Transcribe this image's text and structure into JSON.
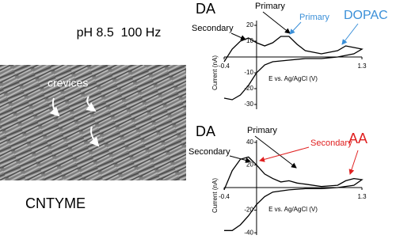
{
  "header": {
    "conditions": "pH 8.5  100 Hz"
  },
  "image": {
    "label": "crevices",
    "caption": "CNTYME"
  },
  "chart_data": [
    {
      "type": "line",
      "xlabel": "E vs. Ag/AgCl (V)",
      "ylabel": "Current (nA)",
      "x": [
        -0.4,
        -0.3,
        -0.2,
        -0.1,
        0,
        0.1,
        0.2,
        0.3,
        0.4,
        0.5,
        0.6,
        0.8,
        1.0,
        1.1,
        1.2,
        1.3,
        1.2,
        1.0,
        0.8,
        0.6,
        0.4,
        0.2,
        0.1,
        0,
        -0.1,
        -0.2,
        -0.3,
        -0.4
      ],
      "values": [
        -3,
        5,
        10,
        12,
        9,
        7,
        9,
        13,
        13,
        8,
        4,
        2,
        4,
        7,
        6,
        5,
        2,
        0,
        -1,
        -1,
        -2,
        -3,
        -5,
        -10,
        -18,
        -24,
        -27,
        -26
      ],
      "color": "#000000",
      "xlim": [
        -0.4,
        1.3
      ],
      "xticks": [
        -0.4,
        1.3
      ],
      "ylim": [
        -33,
        23
      ],
      "yticks": [
        20,
        10,
        -10,
        -20,
        -30
      ],
      "annotations": [
        "DA",
        "Primary",
        "Secondary",
        "Primary",
        "DOPAC"
      ]
    },
    {
      "type": "line",
      "xlabel": "E vs. Ag/AgCl (V)",
      "ylabel": "Current (nA)",
      "x": [
        -0.4,
        -0.3,
        -0.2,
        -0.1,
        0,
        0.1,
        0.2,
        0.3,
        0.4,
        0.5,
        0.6,
        0.8,
        1.0,
        1.1,
        1.2,
        1.3,
        1.2,
        1.0,
        0.8,
        0.6,
        0.4,
        0.2,
        0.1,
        0,
        -0.1,
        -0.2,
        -0.3,
        -0.4
      ],
      "values": [
        -2,
        15,
        25,
        27,
        20,
        12,
        8,
        5,
        6,
        4,
        3,
        1,
        2,
        6,
        8,
        7,
        2,
        0,
        -1,
        -1,
        -2,
        -4,
        -8,
        -15,
        -25,
        -33,
        -38,
        -38
      ],
      "color": "#000000",
      "xlim": [
        -0.4,
        1.3
      ],
      "xticks": [
        -0.4,
        1.3
      ],
      "ylim": [
        -42,
        42
      ],
      "yticks": [
        40,
        20,
        -20,
        -40
      ],
      "annotations": [
        "DA",
        "Primary",
        "Secondary",
        "Secondary",
        "AA"
      ]
    }
  ]
}
